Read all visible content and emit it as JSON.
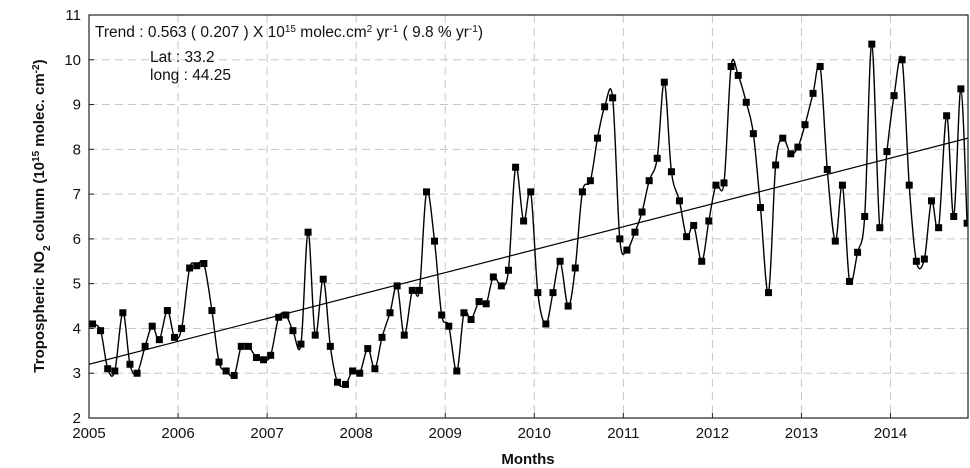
{
  "chart_data": {
    "type": "line",
    "annotation": [
      {
        "text": "Trend : 0.563 ( 0.207 ) X  10"
      },
      {
        "text": "15",
        "shift": "super"
      },
      {
        "text": " molec.cm"
      },
      {
        "text": "2",
        "shift": "super"
      },
      {
        "text": " yr"
      },
      {
        "text": "-1",
        "shift": "super"
      },
      {
        "text": " ( 9.8 % yr"
      },
      {
        "text": "-1",
        "shift": "super"
      },
      {
        "text": ")"
      }
    ],
    "location": [
      "Lat : 33.2",
      "long : 44.25"
    ],
    "xlabel": "Months",
    "ylabel": [
      {
        "text": "Tropospheric NO"
      },
      {
        "text": "2",
        "shift": "sub"
      },
      {
        "text": " column (10"
      },
      {
        "text": "15",
        "shift": "super"
      },
      {
        "text": " molec. cm"
      },
      {
        "text": "-2",
        "shift": "super"
      },
      {
        "text": ")"
      }
    ],
    "xlim": [
      2005,
      2014.87
    ],
    "xticks": [
      2005,
      2006,
      2007,
      2008,
      2009,
      2010,
      2011,
      2012,
      2013,
      2014
    ],
    "ylim": [
      2,
      11
    ],
    "yticks": [
      2,
      3,
      4,
      5,
      6,
      7,
      8,
      9,
      10,
      11
    ],
    "grid": true,
    "series": [
      {
        "color": "#000000",
        "x": [
          2005.04,
          2005.13,
          2005.21,
          2005.29,
          2005.38,
          2005.46,
          2005.54,
          2005.63,
          2005.71,
          2005.79,
          2005.88,
          2005.96,
          2006.04,
          2006.13,
          2006.21,
          2006.29,
          2006.38,
          2006.46,
          2006.54,
          2006.63,
          2006.71,
          2006.79,
          2006.88,
          2006.96,
          2007.04,
          2007.13,
          2007.21,
          2007.29,
          2007.38,
          2007.46,
          2007.54,
          2007.63,
          2007.71,
          2007.79,
          2007.88,
          2007.96,
          2008.04,
          2008.13,
          2008.21,
          2008.29,
          2008.38,
          2008.46,
          2008.54,
          2008.63,
          2008.71,
          2008.79,
          2008.88,
          2008.96,
          2009.04,
          2009.13,
          2009.21,
          2009.29,
          2009.38,
          2009.46,
          2009.54,
          2009.63,
          2009.71,
          2009.79,
          2009.88,
          2009.96,
          2010.04,
          2010.13,
          2010.21,
          2010.29,
          2010.38,
          2010.46,
          2010.54,
          2010.63,
          2010.71,
          2010.79,
          2010.88,
          2010.96,
          2011.04,
          2011.13,
          2011.21,
          2011.29,
          2011.38,
          2011.46,
          2011.54,
          2011.63,
          2011.71,
          2011.79,
          2011.88,
          2011.96,
          2012.04,
          2012.13,
          2012.21,
          2012.29,
          2012.38,
          2012.46,
          2012.54,
          2012.63,
          2012.71,
          2012.79,
          2012.88,
          2012.96,
          2013.04,
          2013.13,
          2013.21,
          2013.29,
          2013.38,
          2013.46,
          2013.54,
          2013.63,
          2013.71,
          2013.79,
          2013.88,
          2013.96,
          2014.04,
          2014.13,
          2014.21,
          2014.29,
          2014.38,
          2014.46,
          2014.54,
          2014.63,
          2014.71,
          2014.79,
          2014.86
        ],
        "values": [
          4.1,
          3.95,
          3.1,
          3.05,
          4.35,
          3.2,
          3.0,
          3.6,
          4.05,
          3.75,
          4.4,
          3.8,
          4.0,
          5.35,
          5.4,
          5.45,
          4.4,
          3.25,
          3.05,
          2.95,
          3.6,
          3.6,
          3.35,
          3.3,
          3.4,
          4.25,
          4.3,
          3.95,
          3.65,
          6.15,
          3.85,
          5.1,
          3.6,
          2.8,
          2.75,
          3.05,
          3.0,
          3.55,
          3.1,
          3.8,
          4.35,
          4.95,
          3.85,
          4.85,
          4.85,
          7.05,
          5.95,
          4.3,
          4.05,
          3.05,
          4.35,
          4.2,
          4.6,
          4.55,
          5.15,
          4.95,
          5.3,
          7.6,
          6.4,
          7.05,
          4.8,
          4.1,
          4.8,
          5.5,
          4.5,
          5.35,
          7.05,
          7.3,
          8.25,
          8.95,
          9.15,
          6.0,
          5.75,
          6.15,
          6.6,
          7.3,
          7.8,
          9.5,
          7.5,
          6.85,
          6.05,
          6.3,
          5.5,
          6.4,
          7.2,
          7.25,
          9.85,
          9.65,
          9.05,
          8.35,
          6.7,
          4.8,
          7.65,
          8.25,
          7.9,
          8.05,
          8.55,
          9.25,
          9.85,
          7.55,
          5.95,
          7.2,
          5.05,
          5.7,
          6.5,
          10.35,
          6.25,
          7.95,
          9.2,
          10.0,
          7.2,
          5.5,
          5.55,
          6.85,
          6.25,
          8.75,
          6.5,
          9.35,
          6.35
        ]
      }
    ],
    "trend": {
      "color": "#000000",
      "x": [
        2005,
        2014.87
      ],
      "values": [
        3.2,
        8.25
      ]
    }
  }
}
